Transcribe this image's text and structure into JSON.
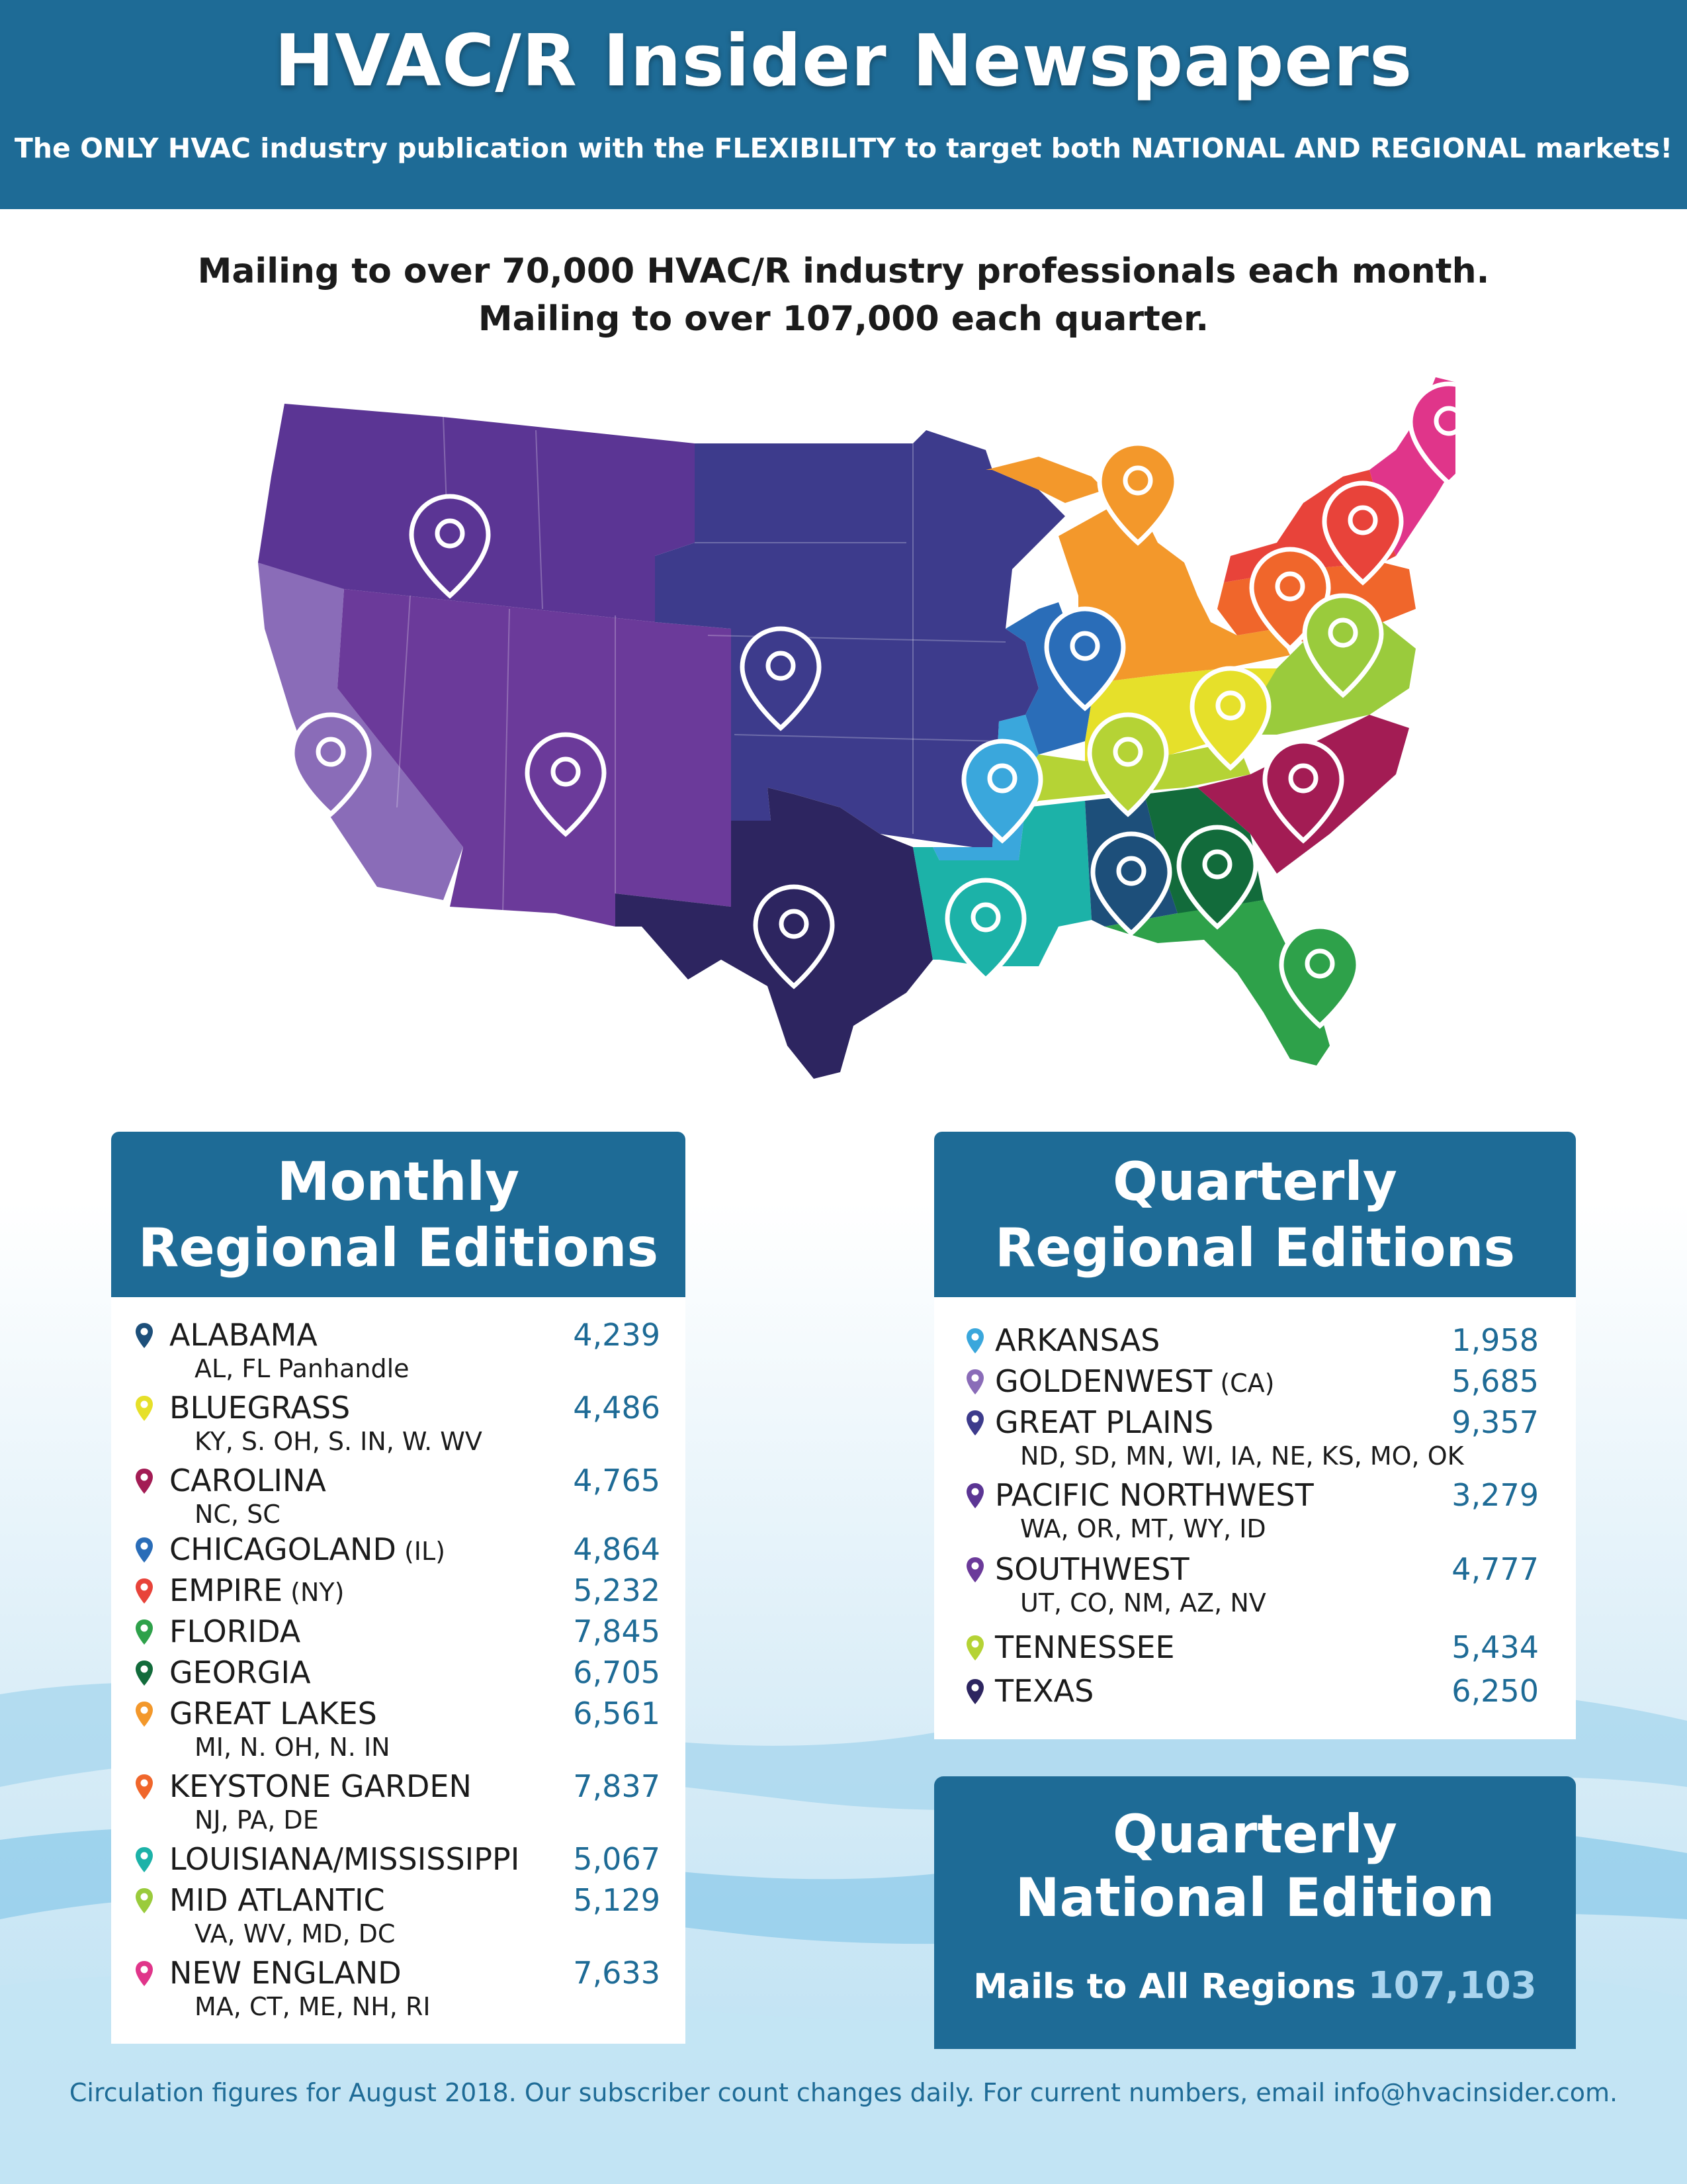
{
  "header": {
    "title": "HVAC/R Insider Newspapers",
    "subtitle": "The ONLY HVAC industry publication with the FLEXIBILITY to target both NATIONAL AND REGIONAL markets!"
  },
  "tagline": {
    "line1": "Mailing to over 70,000 HVAC/R industry professionals each month.",
    "line2": "Mailing to over 107,000 each quarter."
  },
  "colors": {
    "header_blue": "#1e6b96",
    "value_blue": "#1e6b96",
    "national_count": "#a9d4ee"
  },
  "monthly": {
    "title_line1": "Monthly",
    "title_line2": "Regional Editions",
    "items": [
      {
        "name": "ALABAMA",
        "suffix": "",
        "value": "4,239",
        "sub": "AL, FL Panhandle",
        "color": "#1d4f7a"
      },
      {
        "name": "BLUEGRASS",
        "suffix": "",
        "value": "4,486",
        "sub": "KY, S. OH, S. IN, W. WV",
        "color": "#e6e02a"
      },
      {
        "name": "CAROLINA",
        "suffix": "",
        "value": "4,765",
        "sub": "NC, SC",
        "color": "#a31c54"
      },
      {
        "name": "CHICAGOLAND",
        "suffix": "(IL)",
        "value": "4,864",
        "sub": "",
        "color": "#2a6db8"
      },
      {
        "name": "EMPIRE",
        "suffix": "(NY)",
        "value": "5,232",
        "sub": "",
        "color": "#e8433a"
      },
      {
        "name": "FLORIDA",
        "suffix": "",
        "value": "7,845",
        "sub": "",
        "color": "#2ea14a"
      },
      {
        "name": "GEORGIA",
        "suffix": "",
        "value": "6,705",
        "sub": "",
        "color": "#126b3b"
      },
      {
        "name": "GREAT LAKES",
        "suffix": "",
        "value": "6,561",
        "sub": "MI, N. OH, N. IN",
        "color": "#f3982b"
      },
      {
        "name": "KEYSTONE GARDEN",
        "suffix": "",
        "value": "7,837",
        "sub": "NJ, PA, DE",
        "color": "#f0662b"
      },
      {
        "name": "LOUISIANA/MISSISSIPPI",
        "suffix": "",
        "value": "5,067",
        "sub": "",
        "color": "#1cb2a8"
      },
      {
        "name": "MID ATLANTIC",
        "suffix": "",
        "value": "5,129",
        "sub": "VA, WV, MD, DC",
        "color": "#9acb3c"
      },
      {
        "name": "NEW ENGLAND",
        "suffix": "",
        "value": "7,633",
        "sub": "MA, CT, ME, NH, RI",
        "color": "#e0358a"
      }
    ]
  },
  "quarterly": {
    "title_line1": "Quarterly",
    "title_line2": "Regional Editions",
    "items": [
      {
        "name": "ARKANSAS",
        "suffix": "",
        "value": "1,958",
        "sub": "",
        "color": "#3aa7dc"
      },
      {
        "name": "GOLDENWEST",
        "suffix": "(CA)",
        "value": "5,685",
        "sub": "",
        "color": "#8a6cb8"
      },
      {
        "name": "GREAT PLAINS",
        "suffix": "",
        "value": "9,357",
        "sub": "ND, SD, MN, WI, IA, NE, KS, MO, OK",
        "color": "#3d3b8c"
      },
      {
        "name": "PACIFIC NORTHWEST",
        "suffix": "",
        "value": "3,279",
        "sub": "WA, OR, MT, WY, ID",
        "color": "#5b3594"
      },
      {
        "name": "SOUTHWEST",
        "suffix": "",
        "value": "4,777",
        "sub": "UT, CO, NM, AZ, NV",
        "color": "#6b3a9a"
      },
      {
        "name": "TENNESSEE",
        "suffix": "",
        "value": "5,434",
        "sub": "",
        "color": "#b5d335"
      },
      {
        "name": "TEXAS",
        "suffix": "",
        "value": "6,250",
        "sub": "",
        "color": "#2d2560"
      }
    ]
  },
  "national": {
    "title_line1": "Quarterly",
    "title_line2": "National Edition",
    "mails_label": "Mails to All Regions",
    "mails_value": "107,103"
  },
  "footer": {
    "text": "Circulation figures for August 2018. Our subscriber count changes daily. For current numbers, email info@hvacinsider.com."
  }
}
